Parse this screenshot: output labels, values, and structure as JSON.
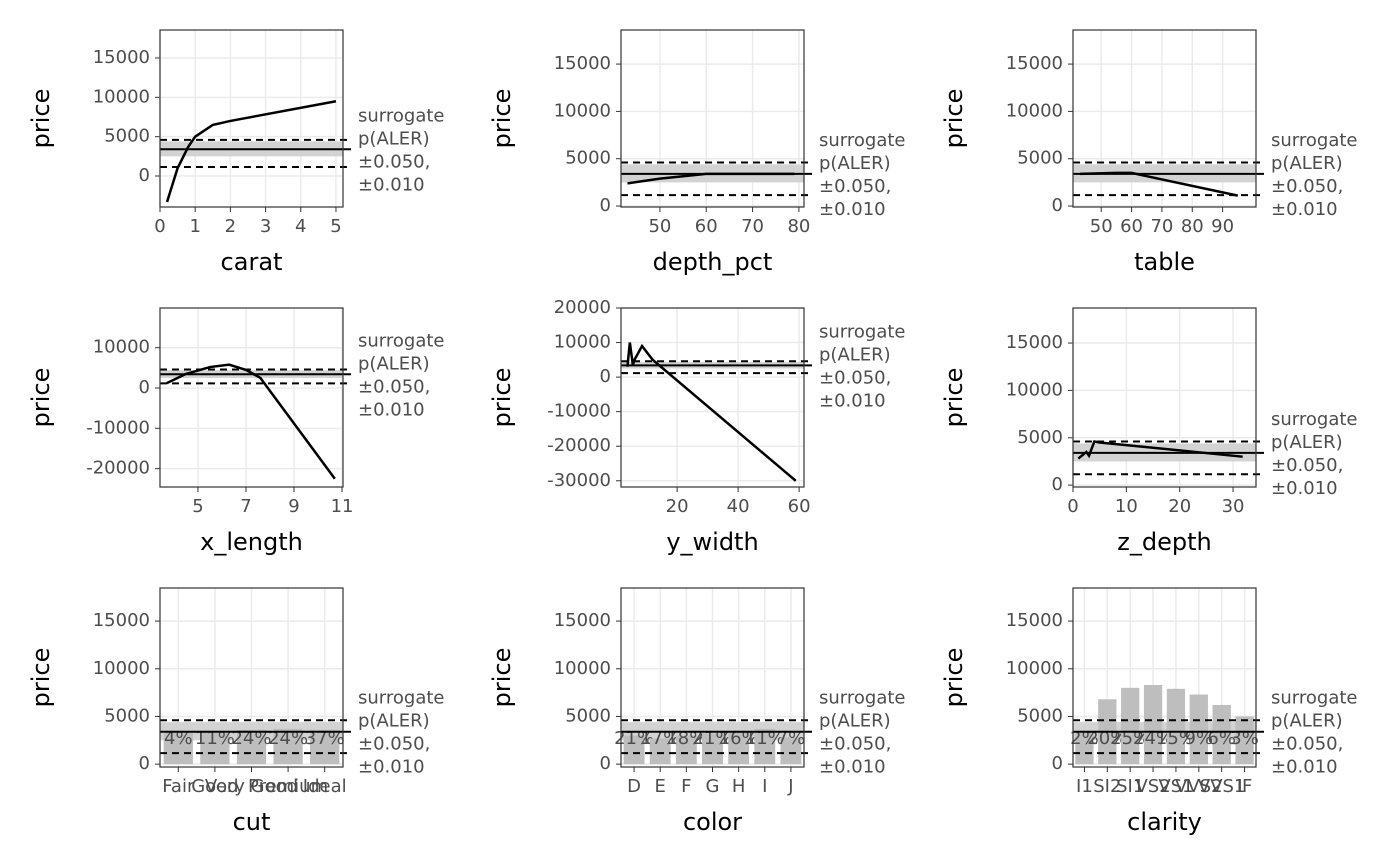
{
  "chart_data": [
    {
      "type": "line",
      "xlabel": "carat",
      "ylabel": "price",
      "xlim": [
        0,
        5.2
      ],
      "ylim": [
        -3940,
        18560
      ],
      "xticks": [
        0,
        1,
        2,
        3,
        4,
        5
      ],
      "yticks": [
        0,
        5000,
        10000,
        15000
      ],
      "x": [
        0.2,
        0.5,
        0.8,
        1,
        1.5,
        2,
        5
      ],
      "values": [
        -3300,
        1000,
        3700,
        5000,
        6500,
        7000,
        9500
      ],
      "reference": {
        "median": 3400,
        "band": [
          2500,
          4400
        ],
        "dashed": [
          1150,
          4600
        ]
      },
      "annotation": [
        "surrogate",
        "p(ALER)",
        "±0.050,",
        "±0.010"
      ]
    },
    {
      "type": "line",
      "xlabel": "depth_pct",
      "ylabel": "price",
      "xlim": [
        41.6,
        81.1
      ],
      "ylim": [
        -100,
        18600
      ],
      "xticks": [
        50,
        60,
        70,
        80
      ],
      "yticks": [
        0,
        5000,
        10000,
        15000
      ],
      "x": [
        43,
        50,
        60,
        70,
        79
      ],
      "values": [
        2400,
        2900,
        3400,
        3400,
        3400
      ],
      "reference": {
        "median": 3400,
        "band": [
          2500,
          4400
        ],
        "dashed": [
          1150,
          4600
        ]
      },
      "annotation": [
        "surrogate",
        "p(ALER)",
        "±0.050,",
        "±0.010"
      ]
    },
    {
      "type": "line",
      "xlabel": "table",
      "ylabel": "price",
      "xlim": [
        40.7,
        101
      ],
      "ylim": [
        -100,
        18600
      ],
      "xticks": [
        50,
        60,
        70,
        80,
        90
      ],
      "yticks": [
        0,
        5000,
        10000,
        15000
      ],
      "x": [
        43,
        55,
        60,
        95
      ],
      "values": [
        3400,
        3500,
        3500,
        1100
      ],
      "reference": {
        "median": 3400,
        "band": [
          2500,
          4400
        ],
        "dashed": [
          1150,
          4600
        ]
      },
      "annotation": [
        "surrogate",
        "p(ALER)",
        "±0.050,",
        "±0.010"
      ]
    },
    {
      "type": "line",
      "xlabel": "x_length",
      "ylabel": "price",
      "xlim": [
        3.42,
        11.04
      ],
      "ylim": [
        -24560,
        19850
      ],
      "xticks": [
        5,
        7,
        9,
        11
      ],
      "yticks": [
        -20000,
        -10000,
        0,
        10000
      ],
      "x": [
        3.7,
        4.5,
        5.5,
        6.3,
        7,
        7.6,
        10.7
      ],
      "values": [
        1200,
        3500,
        5200,
        5800,
        4500,
        2500,
        -22500
      ],
      "reference": {
        "median": 3400,
        "band": [
          2500,
          4400
        ],
        "dashed": [
          1150,
          4600
        ]
      },
      "annotation": [
        "surrogate",
        "p(ALER)",
        "±0.050,",
        "±0.010"
      ]
    },
    {
      "type": "line",
      "xlabel": "y_width",
      "ylabel": "price",
      "xlim": [
        1.6,
        61.6
      ],
      "ylim": [
        -31800,
        20000
      ],
      "xticks": [
        20,
        40,
        60
      ],
      "yticks": [
        -30000,
        -20000,
        -10000,
        0,
        10000,
        20000
      ],
      "x": [
        3.7,
        4.5,
        5.5,
        6,
        8.5,
        12,
        58.9
      ],
      "values": [
        3000,
        10000,
        3500,
        5000,
        9000,
        5000,
        -30000
      ],
      "reference": {
        "median": 3400,
        "band": [
          2500,
          4400
        ],
        "dashed": [
          1150,
          4600
        ]
      },
      "annotation": [
        "surrogate",
        "p(ALER)",
        "±0.050,",
        "±0.010"
      ]
    },
    {
      "type": "line",
      "xlabel": "z_depth",
      "ylabel": "price",
      "xlim": [
        0,
        34.3
      ],
      "ylim": [
        -200,
        18700
      ],
      "xticks": [
        0,
        10,
        20,
        30
      ],
      "yticks": [
        0,
        5000,
        10000,
        15000
      ],
      "x": [
        1,
        2.5,
        3,
        4,
        5,
        31.8
      ],
      "values": [
        2800,
        3500,
        3100,
        4600,
        4500,
        3000
      ],
      "reference": {
        "median": 3400,
        "band": [
          2500,
          4400
        ],
        "dashed": [
          1150,
          4600
        ]
      },
      "annotation": [
        "surrogate",
        "p(ALER)",
        "±0.050,",
        "±0.010"
      ]
    },
    {
      "type": "bar",
      "xlabel": "cut",
      "ylabel": "price",
      "ylim": [
        -300,
        18470
      ],
      "yticks": [
        0,
        5000,
        10000,
        15000
      ],
      "categories": [
        "Fair",
        "Good",
        "Very Good",
        "Premium",
        "Ideal"
      ],
      "values": [
        3300,
        3500,
        3600,
        3700,
        3600
      ],
      "share_labels": [
        "4%",
        "11%",
        "24%",
        "24%",
        "37%"
      ],
      "reference": {
        "median": 3400,
        "band": [
          2500,
          4400
        ],
        "dashed": [
          1150,
          4600
        ]
      },
      "annotation": [
        "surrogate",
        "p(ALER)",
        "±0.050,",
        "±0.010"
      ]
    },
    {
      "type": "bar",
      "xlabel": "color",
      "ylabel": "price",
      "ylim": [
        -300,
        18470
      ],
      "yticks": [
        0,
        5000,
        10000,
        15000
      ],
      "categories": [
        "D",
        "E",
        "F",
        "G",
        "H",
        "I",
        "J"
      ],
      "values": [
        3000,
        2700,
        3000,
        3200,
        3400,
        3700,
        2800
      ],
      "share_labels": [
        "21%",
        "17%",
        "18%",
        "21%",
        "16%",
        "11%",
        "7%"
      ],
      "reference": {
        "median": 3400,
        "band": [
          2500,
          4400
        ],
        "dashed": [
          1150,
          4600
        ]
      },
      "annotation": [
        "surrogate",
        "p(ALER)",
        "±0.050,",
        "±0.010"
      ]
    },
    {
      "type": "bar",
      "xlabel": "clarity",
      "ylabel": "price",
      "ylim": [
        -300,
        18470
      ],
      "yticks": [
        0,
        5000,
        10000,
        15000
      ],
      "categories": [
        "I1",
        "SI2",
        "SI1",
        "VS2",
        "VS1",
        "VVS2",
        "VVS1",
        "IF"
      ],
      "values": [
        3300,
        6800,
        8000,
        8300,
        7900,
        7300,
        6200,
        5000
      ],
      "share_labels": [
        "2%",
        "20%",
        "25%",
        "24%",
        "15%",
        "9%",
        "6%",
        "3%"
      ],
      "reference": {
        "median": 3400,
        "band": [
          2500,
          4400
        ],
        "dashed": [
          1150,
          4600
        ]
      },
      "annotation": [
        "surrogate",
        "p(ALER)",
        "±0.050,",
        "±0.010"
      ]
    }
  ]
}
